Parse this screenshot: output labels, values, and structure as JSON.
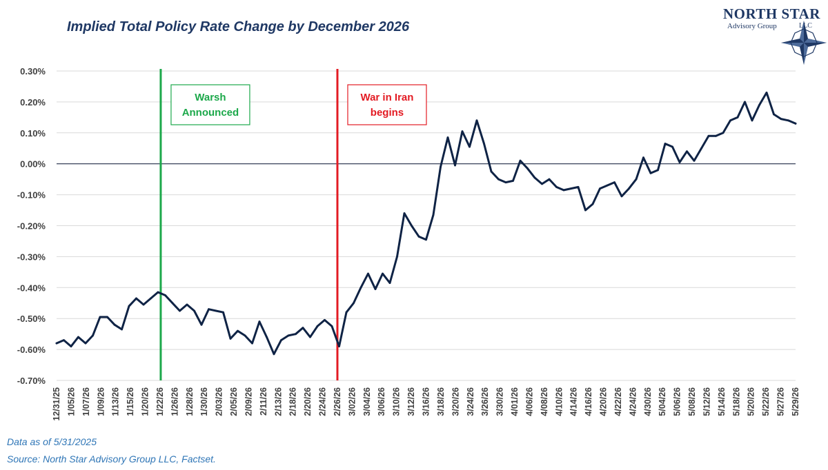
{
  "chart_data": {
    "type": "line",
    "title": "Implied Total Policy Rate Change by December 2026",
    "xlabel": "",
    "ylabel": "",
    "ylim": [
      -0.7,
      0.3
    ],
    "ytick_step": 0.1,
    "ytick_labels": [
      "0.30%",
      "0.20%",
      "0.10%",
      "0.00%",
      "-0.10%",
      "-0.20%",
      "-0.30%",
      "-0.40%",
      "-0.50%",
      "-0.60%",
      "-0.70%"
    ],
    "xtick_labels": [
      "12/31/25",
      "1/05/26",
      "1/07/26",
      "1/09/26",
      "1/13/26",
      "1/15/26",
      "1/20/26",
      "1/22/26",
      "1/26/26",
      "1/28/26",
      "1/30/26",
      "2/03/26",
      "2/05/26",
      "2/09/26",
      "2/11/26",
      "2/13/26",
      "2/18/26",
      "2/20/26",
      "2/24/26",
      "2/26/26",
      "3/02/26",
      "3/04/26",
      "3/06/26",
      "3/10/26",
      "3/12/26",
      "3/16/26",
      "3/18/26",
      "3/20/26",
      "3/24/26",
      "3/26/26",
      "3/30/26",
      "4/01/26",
      "4/06/26",
      "4/08/26",
      "4/10/26",
      "4/14/26",
      "4/16/26",
      "4/20/26",
      "4/22/26",
      "4/24/26",
      "4/30/26",
      "5/04/26",
      "5/06/26",
      "5/08/26",
      "5/12/26",
      "5/14/26",
      "5/18/26",
      "5/20/26",
      "5/22/26",
      "5/27/26",
      "5/29/26"
    ],
    "grid": true,
    "line_color": "#0f2345",
    "values": [
      -0.58,
      -0.57,
      -0.59,
      -0.56,
      -0.58,
      -0.555,
      -0.495,
      -0.495,
      -0.52,
      -0.535,
      -0.46,
      -0.435,
      -0.455,
      -0.435,
      -0.415,
      -0.425,
      -0.45,
      -0.475,
      -0.455,
      -0.475,
      -0.52,
      -0.47,
      -0.475,
      -0.48,
      -0.565,
      -0.54,
      -0.555,
      -0.58,
      -0.51,
      -0.56,
      -0.615,
      -0.57,
      -0.555,
      -0.55,
      -0.53,
      -0.56,
      -0.525,
      -0.505,
      -0.525,
      -0.59,
      -0.48,
      -0.45,
      -0.4,
      -0.355,
      -0.405,
      -0.355,
      -0.385,
      -0.3,
      -0.16,
      -0.2,
      -0.235,
      -0.245,
      -0.165,
      -0.01,
      0.085,
      -0.005,
      0.105,
      0.055,
      0.14,
      0.065,
      -0.025,
      -0.05,
      -0.06,
      -0.055,
      0.01,
      -0.015,
      -0.045,
      -0.065,
      -0.05,
      -0.075,
      -0.085,
      -0.08,
      -0.075,
      -0.15,
      -0.13,
      -0.08,
      -0.07,
      -0.06,
      -0.105,
      -0.08,
      -0.05,
      0.02,
      -0.03,
      -0.02,
      0.065,
      0.055,
      0.005,
      0.04,
      0.01,
      0.05,
      0.09,
      0.09,
      0.1,
      0.14,
      0.15,
      0.2,
      0.14,
      0.19,
      0.23,
      0.16,
      0.145,
      0.14,
      0.13
    ],
    "vlines": [
      {
        "label": "Warsh Announced",
        "lines": [
          "Warsh",
          "Announced"
        ],
        "date": "1/22/26",
        "color": "#1ca84a"
      },
      {
        "label": "War in Iran begins",
        "lines": [
          "War in Iran",
          "begins"
        ],
        "date": "2/26/26",
        "color": "#e31b23"
      }
    ]
  },
  "logo": {
    "brand": "NORTH STAR",
    "subtitle": "Advisory Group",
    "suffix": "LLC",
    "color": "#1f3864"
  },
  "notes": {
    "data_as_of": "Data as of 5/31/2025",
    "source": "Source: North Star Advisory Group LLC, Factset."
  }
}
